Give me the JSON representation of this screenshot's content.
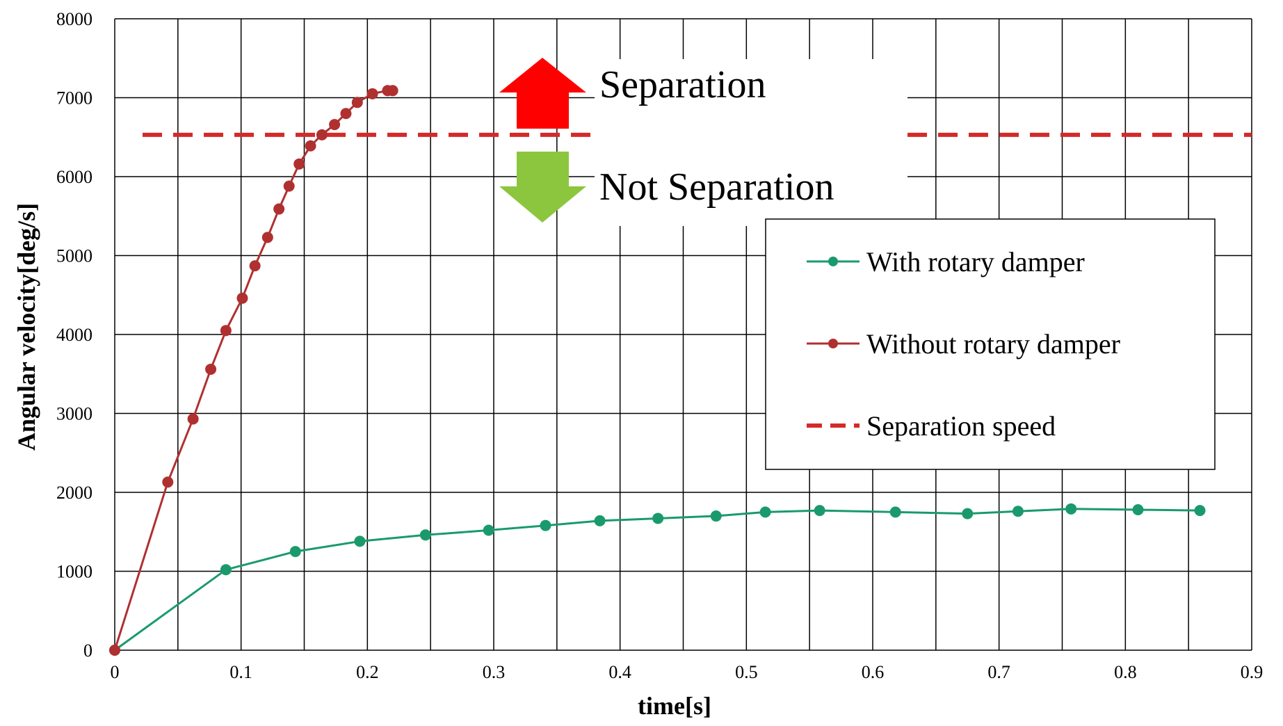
{
  "chart_data": {
    "type": "line",
    "xlabel": "time[s]",
    "ylabel": "Angular velocity[deg/s]",
    "xlim": [
      0,
      0.9
    ],
    "ylim": [
      0,
      8000
    ],
    "x_ticks": [
      "0",
      "0.1",
      "0.2",
      "0.3",
      "0.4",
      "0.5",
      "0.6",
      "0.7",
      "0.8",
      "0.9"
    ],
    "y_ticks": [
      "0",
      "1000",
      "2000",
      "3000",
      "4000",
      "5000",
      "6000",
      "7000",
      "8000"
    ],
    "x_minor_grid_step": 0.05,
    "grid": true,
    "legend_position": "right",
    "series": [
      {
        "name": "With rotary damper",
        "color": "#1a9a6c",
        "marker": "circle",
        "x": [
          0,
          0.088,
          0.143,
          0.194,
          0.246,
          0.296,
          0.341,
          0.384,
          0.43,
          0.476,
          0.515,
          0.558,
          0.618,
          0.675,
          0.715,
          0.757,
          0.81,
          0.859
        ],
        "y": [
          0,
          1020,
          1250,
          1380,
          1460,
          1520,
          1580,
          1640,
          1670,
          1700,
          1750,
          1770,
          1750,
          1730,
          1760,
          1790,
          1780,
          1770
        ]
      },
      {
        "name": "Without rotary damper",
        "color": "#b03030",
        "marker": "circle",
        "x": [
          0,
          0.042,
          0.062,
          0.076,
          0.088,
          0.101,
          0.111,
          0.121,
          0.13,
          0.138,
          0.146,
          0.155,
          0.164,
          0.174,
          0.183,
          0.192,
          0.204,
          0.216,
          0.22
        ],
        "y": [
          0,
          2130,
          2930,
          3560,
          4050,
          4460,
          4870,
          5230,
          5590,
          5880,
          6160,
          6390,
          6530,
          6660,
          6800,
          6940,
          7050,
          7090,
          7090
        ]
      },
      {
        "name": "Separation speed",
        "color": "#d42a2a",
        "style": "dashed",
        "y_constant": 6530
      }
    ],
    "annotations": [
      {
        "text": "Separation",
        "arrow": "up",
        "color": "#ff0000"
      },
      {
        "text": "Not Separation",
        "arrow": "down",
        "color": "#8cc63f"
      }
    ]
  }
}
